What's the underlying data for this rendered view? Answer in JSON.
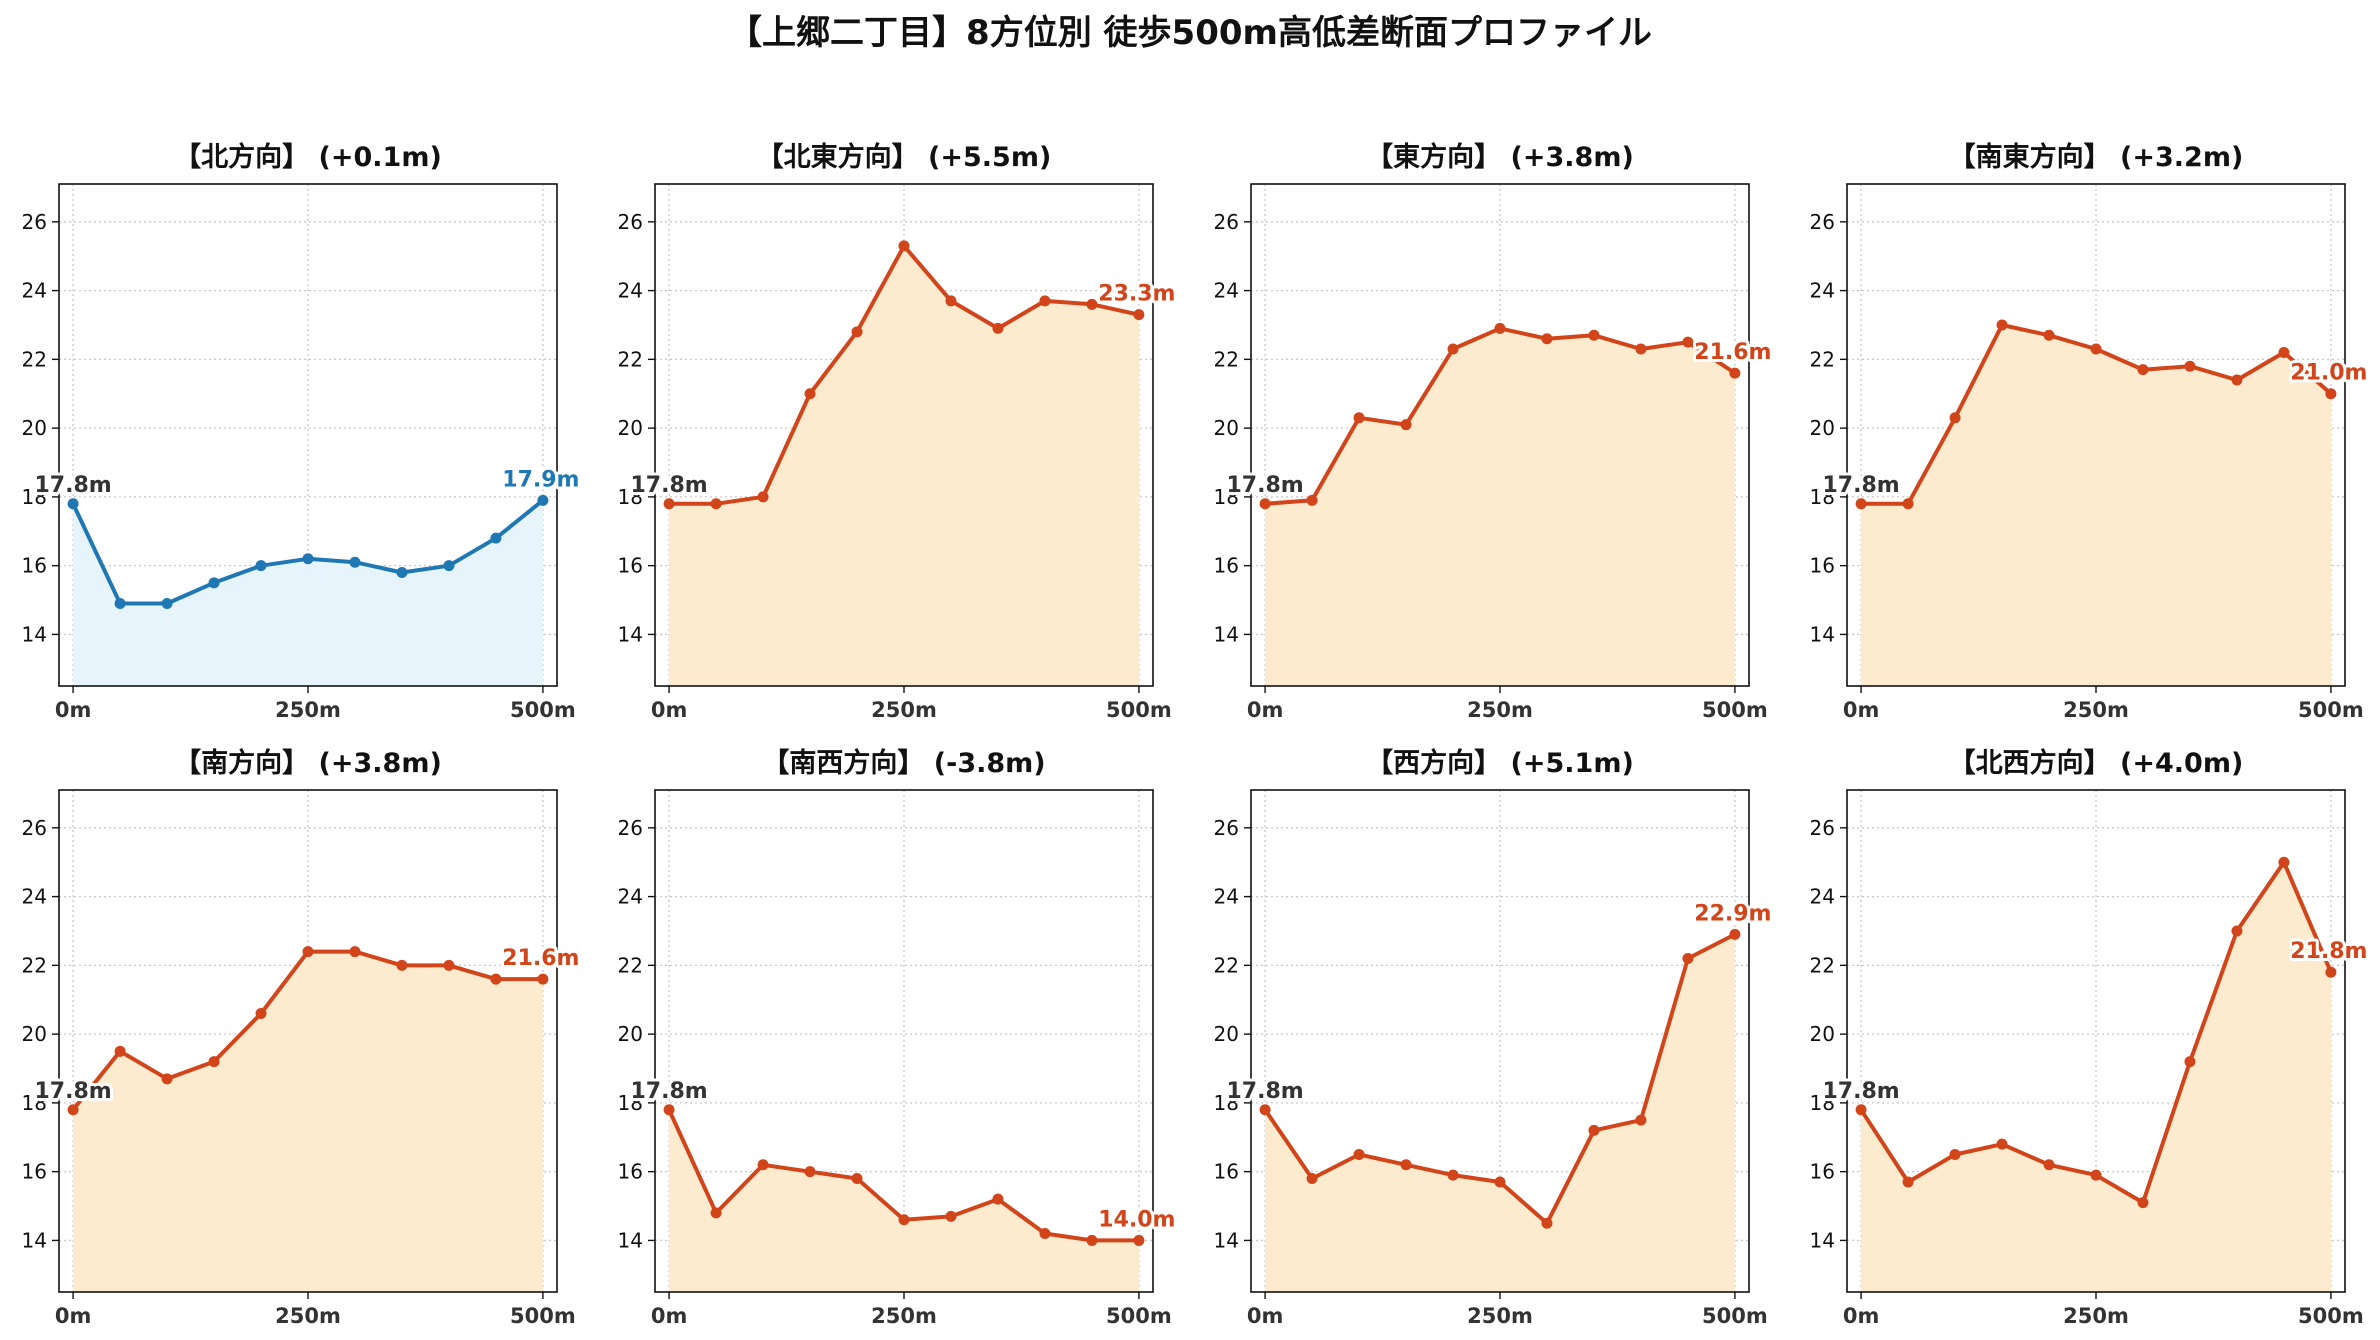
{
  "suptitle": "【上郷二丁目】8方位別 徒歩500m高低差断面プロファイル",
  "colors": {
    "up_line": "#d2441a",
    "up_fill": "#fdebcf",
    "flat_line": "#1f77b4",
    "flat_fill": "#e8f4fb",
    "start_label": "#333333"
  },
  "x_ticks": [
    {
      "value": 0,
      "label": "0m"
    },
    {
      "value": 250,
      "label": "250m"
    },
    {
      "value": 500,
      "label": "500m"
    }
  ],
  "y_ticks": [
    14,
    16,
    18,
    20,
    22,
    24,
    26
  ],
  "chart_data": [
    {
      "type": "area",
      "title": "【北方向】 (+0.1m)",
      "style": "flat",
      "x": [
        0,
        50,
        100,
        150,
        200,
        250,
        300,
        350,
        400,
        450,
        500
      ],
      "values": [
        17.8,
        14.9,
        14.9,
        15.5,
        16.0,
        16.2,
        16.1,
        15.8,
        16.0,
        16.8,
        17.9
      ],
      "start_label": "17.8m",
      "end_label": "17.9m",
      "xlim": [
        -15,
        515
      ],
      "ylim": [
        12.5,
        27.1
      ],
      "grid": true
    },
    {
      "type": "area",
      "title": "【北東方向】 (+5.5m)",
      "style": "up",
      "x": [
        0,
        50,
        100,
        150,
        200,
        250,
        300,
        350,
        400,
        450,
        500
      ],
      "values": [
        17.8,
        17.8,
        18.0,
        21.0,
        22.8,
        25.3,
        23.7,
        22.9,
        23.7,
        23.6,
        23.3
      ],
      "start_label": "17.8m",
      "end_label": "23.3m",
      "xlim": [
        -15,
        515
      ],
      "ylim": [
        12.5,
        27.1
      ],
      "grid": true
    },
    {
      "type": "area",
      "title": "【東方向】 (+3.8m)",
      "style": "up",
      "x": [
        0,
        50,
        100,
        150,
        200,
        250,
        300,
        350,
        400,
        450,
        500
      ],
      "values": [
        17.8,
        17.9,
        20.3,
        20.1,
        22.3,
        22.9,
        22.6,
        22.7,
        22.3,
        22.5,
        21.6
      ],
      "start_label": "17.8m",
      "end_label": "21.6m",
      "xlim": [
        -15,
        515
      ],
      "ylim": [
        12.5,
        27.1
      ],
      "grid": true
    },
    {
      "type": "area",
      "title": "【南東方向】 (+3.2m)",
      "style": "up",
      "x": [
        0,
        50,
        100,
        150,
        200,
        250,
        300,
        350,
        400,
        450,
        500
      ],
      "values": [
        17.8,
        17.8,
        20.3,
        23.0,
        22.7,
        22.3,
        21.7,
        21.8,
        21.4,
        22.2,
        21.0
      ],
      "start_label": "17.8m",
      "end_label": "21.0m",
      "xlim": [
        -15,
        515
      ],
      "ylim": [
        12.5,
        27.1
      ],
      "grid": true
    },
    {
      "type": "area",
      "title": "【南方向】 (+3.8m)",
      "style": "up",
      "x": [
        0,
        50,
        100,
        150,
        200,
        250,
        300,
        350,
        400,
        450,
        500
      ],
      "values": [
        17.8,
        19.5,
        18.7,
        19.2,
        20.6,
        22.4,
        22.4,
        22.0,
        22.0,
        21.6,
        21.6
      ],
      "start_label": "17.8m",
      "end_label": "21.6m",
      "xlim": [
        -15,
        515
      ],
      "ylim": [
        12.5,
        27.1
      ],
      "grid": true
    },
    {
      "type": "area",
      "title": "【南西方向】 (-3.8m)",
      "style": "up",
      "x": [
        0,
        50,
        100,
        150,
        200,
        250,
        300,
        350,
        400,
        450,
        500
      ],
      "values": [
        17.8,
        14.8,
        16.2,
        16.0,
        15.8,
        14.6,
        14.7,
        15.2,
        14.2,
        14.0,
        14.0
      ],
      "start_label": "17.8m",
      "end_label": "14.0m",
      "xlim": [
        -15,
        515
      ],
      "ylim": [
        12.5,
        27.1
      ],
      "grid": true
    },
    {
      "type": "area",
      "title": "【西方向】 (+5.1m)",
      "style": "up",
      "x": [
        0,
        50,
        100,
        150,
        200,
        250,
        300,
        350,
        400,
        450,
        500
      ],
      "values": [
        17.8,
        15.8,
        16.5,
        16.2,
        15.9,
        15.7,
        14.5,
        17.2,
        17.5,
        22.2,
        22.9
      ],
      "start_label": "17.8m",
      "end_label": "22.9m",
      "xlim": [
        -15,
        515
      ],
      "ylim": [
        12.5,
        27.1
      ],
      "grid": true
    },
    {
      "type": "area",
      "title": "【北西方向】 (+4.0m)",
      "style": "up",
      "x": [
        0,
        50,
        100,
        150,
        200,
        250,
        300,
        350,
        400,
        450,
        500
      ],
      "values": [
        17.8,
        15.7,
        16.5,
        16.8,
        16.2,
        15.9,
        15.1,
        19.2,
        23.0,
        25.0,
        21.8
      ],
      "start_label": "17.8m",
      "end_label": "21.8m",
      "xlim": [
        -15,
        515
      ],
      "ylim": [
        12.5,
        27.1
      ],
      "grid": true
    }
  ]
}
